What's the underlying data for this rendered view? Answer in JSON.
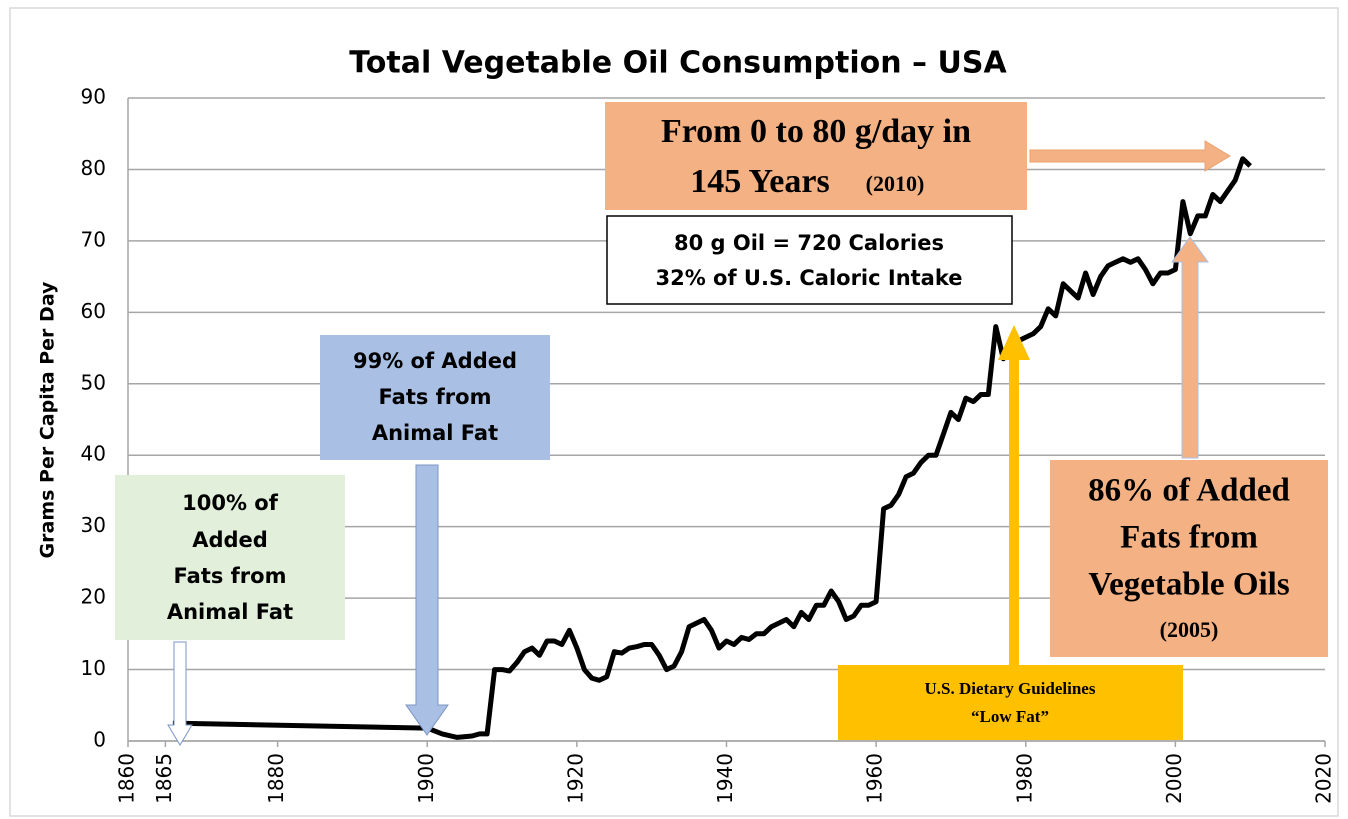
{
  "chart_data": {
    "type": "line",
    "title": "Total Vegetable Oil Consumption – USA",
    "y_label": "Grams Per Capita Per Day",
    "color": "#000000",
    "xlim": [
      1860,
      2020
    ],
    "xticks": [
      1860,
      1865,
      1880,
      1900,
      1920,
      1940,
      1960,
      1980,
      2000,
      2020
    ],
    "ylim": [
      0,
      90
    ],
    "yticks": [
      0,
      10,
      20,
      30,
      40,
      50,
      60,
      70,
      80,
      90
    ],
    "grid": true,
    "x": [
      1866,
      1900,
      1902,
      1904,
      1906,
      1907,
      1908,
      1909,
      1910,
      1911,
      1912,
      1913,
      1914,
      1915,
      1916,
      1917,
      1918,
      1919,
      1920,
      1921,
      1922,
      1923,
      1924,
      1925,
      1926,
      1927,
      1928,
      1929,
      1930,
      1931,
      1932,
      1933,
      1934,
      1935,
      1936,
      1937,
      1938,
      1939,
      1940,
      1941,
      1942,
      1943,
      1944,
      1945,
      1946,
      1947,
      1948,
      1949,
      1950,
      1951,
      1952,
      1953,
      1954,
      1955,
      1956,
      1957,
      1958,
      1959,
      1960,
      1961,
      1962,
      1963,
      1964,
      1965,
      1966,
      1967,
      1968,
      1969,
      1970,
      1971,
      1972,
      1973,
      1974,
      1975,
      1976,
      1977,
      1978,
      1979,
      1980,
      1981,
      1982,
      1983,
      1984,
      1985,
      1986,
      1987,
      1988,
      1989,
      1990,
      1991,
      1992,
      1993,
      1994,
      1995,
      1996,
      1997,
      1998,
      1999,
      2000,
      2001,
      2002,
      2003,
      2004,
      2005,
      2006,
      2007,
      2008,
      2009,
      2010
    ],
    "values": [
      2.5,
      1.8,
      1,
      0.5,
      0.7,
      1,
      1,
      10,
      10,
      9.8,
      11,
      12.5,
      13,
      12,
      14,
      14,
      13.5,
      15.5,
      13,
      10,
      8.8,
      8.5,
      9,
      12.5,
      12.3,
      13,
      13.2,
      13.5,
      13.5,
      12,
      10,
      10.5,
      12.5,
      16,
      16.5,
      17,
      15.5,
      13,
      14,
      13.5,
      14.5,
      14.2,
      15,
      15,
      16,
      16.5,
      17,
      16,
      18,
      17,
      19,
      19,
      21,
      19.5,
      17,
      17.5,
      19,
      19,
      19.5,
      32.5,
      33,
      34.5,
      37,
      37.5,
      39,
      40,
      40,
      43,
      46,
      45,
      48,
      47.5,
      48.5,
      48.5,
      58,
      53.5,
      55.5,
      56,
      56.5,
      57,
      58,
      60.5,
      59.5,
      64,
      63,
      62,
      65.5,
      62.5,
      65,
      66.5,
      67,
      67.5,
      67,
      67.5,
      66,
      64,
      65.5,
      65.5,
      66,
      75.5,
      71,
      73.5,
      73.5,
      76.5,
      75.5,
      77,
      78.5,
      81.5,
      80.5
    ],
    "annotations": [
      {
        "lines": [
          "From 0 to 80 g/day in",
          "145 Years",
          "(2010)"
        ]
      },
      {
        "lines": [
          "80 g Oil = 720 Calories",
          "32% of U.S. Caloric Intake"
        ]
      },
      {
        "lines": [
          "99% of Added",
          "Fats from",
          "Animal Fat"
        ]
      },
      {
        "lines": [
          "100% of",
          "Added",
          "Fats from",
          "Animal Fat"
        ]
      },
      {
        "lines": [
          "86% of Added",
          "Fats from",
          "Vegetable Oils",
          "(2005)"
        ]
      },
      {
        "lines": [
          "U.S. Dietary Guidelines",
          "“Low Fat”"
        ]
      }
    ]
  }
}
